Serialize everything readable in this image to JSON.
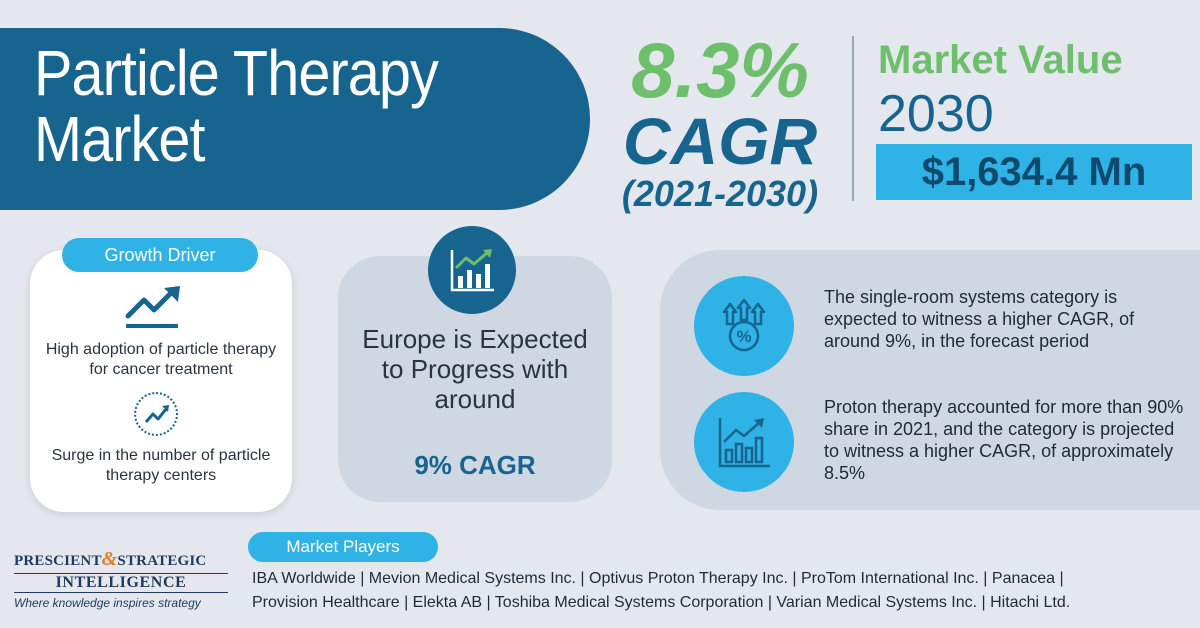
{
  "title": {
    "line1": "Particle Therapy",
    "line2": "Market"
  },
  "cagr": {
    "value": "8.3%",
    "label": "CAGR",
    "period": "(2021-2030)"
  },
  "market_value": {
    "label": "Market Value",
    "year": "2030",
    "amount": "$1,634.4 Mn"
  },
  "growth_driver": {
    "tag": "Growth Driver",
    "item1": "High adoption of particle therapy for cancer treatment",
    "item2": "Surge in the number of particle therapy centers"
  },
  "europe": {
    "text": "Europe is Expected to Progress with around",
    "cagr": "9% CAGR"
  },
  "insights": {
    "item1": "The single-room systems category is expected to witness a higher CAGR, of around 9%, in the forecast period",
    "item2": "Proton therapy accounted for more than 90% share in 2021, and the category is projected to witness a higher CAGR, of approximately 8.5%"
  },
  "logo": {
    "word1": "PRESCIENT",
    "amp": "&",
    "word2": "STRATEGIC",
    "word3": "INTELLIGENCE",
    "tagline": "Where knowledge inspires strategy"
  },
  "market_players": {
    "tag": "Market Players",
    "line1": "IBA Worldwide | Mevion Medical Systems Inc. | Optivus Proton Therapy Inc. | ProTom International Inc. | Panacea |",
    "line2": "Provision Healthcare | Elekta AB | Toshiba Medical Systems Corporation | Varian Medical Systems Inc. | Hitachi Ltd."
  },
  "colors": {
    "primary_blue": "#17648f",
    "accent_green": "#6dbf6b",
    "accent_cyan": "#2fb2e6",
    "background": "#e4e8ee"
  },
  "icons": {
    "growth_driver_1": "trend-up-arrow-icon",
    "growth_driver_2": "trend-circle-icon",
    "europe": "bar-chart-growth-icon",
    "insight_1": "percent-arrows-icon",
    "insight_2": "bar-chart-trend-icon"
  }
}
